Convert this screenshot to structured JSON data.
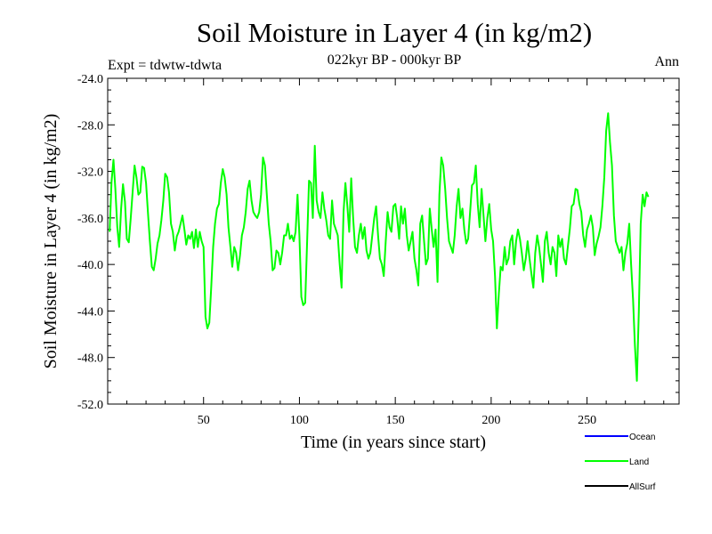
{
  "chart_data": {
    "type": "line",
    "title": "Soil Moisture in Layer 4 (in kg/m2)",
    "subtitle": "022kyr BP - 000kyr BP",
    "experiment_label": "Expt = tdwtw-tdwta",
    "season_label": "Ann",
    "xlabel": "Time (in years since start)",
    "ylabel": "Soil Moisture in Layer 4 (in kg/m2)",
    "xlim": [
      0,
      298
    ],
    "ylim": [
      -52.0,
      -24.0
    ],
    "x_ticks": [
      50,
      100,
      150,
      200,
      250
    ],
    "x_tick_labels": [
      "50",
      "100",
      "150",
      "200",
      "250"
    ],
    "y_ticks": [
      -52.0,
      -48.0,
      -44.0,
      -40.0,
      -36.0,
      -32.0,
      -28.0,
      -24.0
    ],
    "y_tick_labels": [
      "-52.0",
      "-48.0",
      "-44.0",
      "-40.0",
      "-36.0",
      "-32.0",
      "-28.0",
      "-24.0"
    ],
    "grid": false,
    "legend": [
      {
        "name": "Ocean",
        "color": "#0000ff"
      },
      {
        "name": "Land",
        "color": "#00ff00"
      },
      {
        "name": "AllSurf",
        "color": "#000000"
      }
    ],
    "series": [
      {
        "name": "Land",
        "color": "#00ff00",
        "x_start": 1,
        "x_step": 1,
        "values": [
          -37.2,
          -32.9,
          -31.0,
          -33.5,
          -36.8,
          -38.5,
          -35.2,
          -33.1,
          -34.6,
          -37.8,
          -38.1,
          -36.0,
          -33.8,
          -31.5,
          -32.5,
          -34.0,
          -33.8,
          -31.6,
          -31.7,
          -33.0,
          -35.5,
          -38.0,
          -40.2,
          -40.5,
          -39.5,
          -38.2,
          -37.5,
          -36.2,
          -34.5,
          -32.2,
          -32.5,
          -33.8,
          -36.5,
          -37.2,
          -38.8,
          -37.6,
          -37.2,
          -36.5,
          -35.8,
          -37.0,
          -38.3,
          -37.5,
          -37.8,
          -37.2,
          -38.6,
          -37.0,
          -38.5,
          -37.2,
          -38.0,
          -38.5,
          -44.5,
          -45.5,
          -45.0,
          -42.0,
          -38.5,
          -36.5,
          -35.2,
          -34.8,
          -33.0,
          -31.8,
          -32.5,
          -34.0,
          -36.8,
          -38.5,
          -40.2,
          -38.5,
          -39.0,
          -40.5,
          -39.2,
          -37.5,
          -36.8,
          -35.5,
          -33.5,
          -32.8,
          -34.5,
          -35.5,
          -35.8,
          -36.0,
          -35.5,
          -34.0,
          -30.8,
          -31.5,
          -34.0,
          -36.5,
          -38.0,
          -40.5,
          -40.3,
          -38.8,
          -39.0,
          -40.0,
          -39.0,
          -37.5,
          -37.5,
          -36.5,
          -37.8,
          -37.5,
          -38.0,
          -37.2,
          -34.0,
          -37.5,
          -42.8,
          -43.5,
          -43.3,
          -38.0,
          -32.8,
          -33.0,
          -36.0,
          -29.8,
          -34.5,
          -35.5,
          -36.0,
          -33.8,
          -35.2,
          -36.2,
          -37.5,
          -37.8,
          -34.5,
          -36.5,
          -37.0,
          -37.5,
          -40.0,
          -42.0,
          -35.5,
          -33.0,
          -35.0,
          -37.2,
          -32.6,
          -36.0,
          -38.5,
          -39.0,
          -37.5,
          -36.5,
          -37.8,
          -36.8,
          -38.8,
          -39.5,
          -39.0,
          -37.5,
          -36.0,
          -35.0,
          -37.5,
          -39.5,
          -40.0,
          -41.0,
          -38.0,
          -35.5,
          -36.8,
          -37.2,
          -35.0,
          -34.8,
          -36.0,
          -37.8,
          -35.0,
          -36.5,
          -35.2,
          -37.5,
          -38.8,
          -38.0,
          -37.2,
          -39.5,
          -40.5,
          -41.8,
          -36.5,
          -35.8,
          -38.0,
          -40.0,
          -39.5,
          -35.2,
          -37.0,
          -38.5,
          -37.0,
          -41.5,
          -34.0,
          -30.8,
          -31.5,
          -33.5,
          -36.0,
          -38.0,
          -38.5,
          -39.0,
          -37.5,
          -35.0,
          -33.5,
          -36.0,
          -35.2,
          -37.0,
          -38.2,
          -37.8,
          -35.5,
          -33.2,
          -33.0,
          -31.5,
          -34.8,
          -36.8,
          -33.5,
          -35.8,
          -38.0,
          -36.0,
          -34.8,
          -37.0,
          -38.0,
          -41.0,
          -45.5,
          -42.5,
          -40.2,
          -40.5,
          -38.5,
          -40.0,
          -39.5,
          -38.0,
          -37.5,
          -40.0,
          -38.0,
          -37.0,
          -37.8,
          -39.0,
          -40.5,
          -39.5,
          -38.0,
          -39.5,
          -40.8,
          -42.0,
          -39.0,
          -37.5,
          -38.5,
          -40.0,
          -41.5,
          -38.0,
          -37.2,
          -39.0,
          -40.0,
          -38.5,
          -39.0,
          -41.0,
          -37.5,
          -38.5,
          -37.8,
          -39.5,
          -40.0,
          -38.5,
          -37.0,
          -35.0,
          -34.8,
          -33.5,
          -33.6,
          -34.8,
          -35.5,
          -37.5,
          -38.5,
          -37.0,
          -36.5,
          -35.8,
          -36.8,
          -39.2,
          -38.2,
          -37.6,
          -36.8,
          -35.0,
          -32.5,
          -28.5,
          -27.0,
          -29.5,
          -31.5,
          -35.8,
          -38.0,
          -38.5,
          -39.0,
          -38.5,
          -40.5,
          -39.0,
          -38.2,
          -36.5,
          -40.0,
          -43.0,
          -47.0,
          -50.0,
          -44.0,
          -36.5,
          -34.0,
          -35.0,
          -33.8,
          -34.2
        ]
      }
    ]
  }
}
